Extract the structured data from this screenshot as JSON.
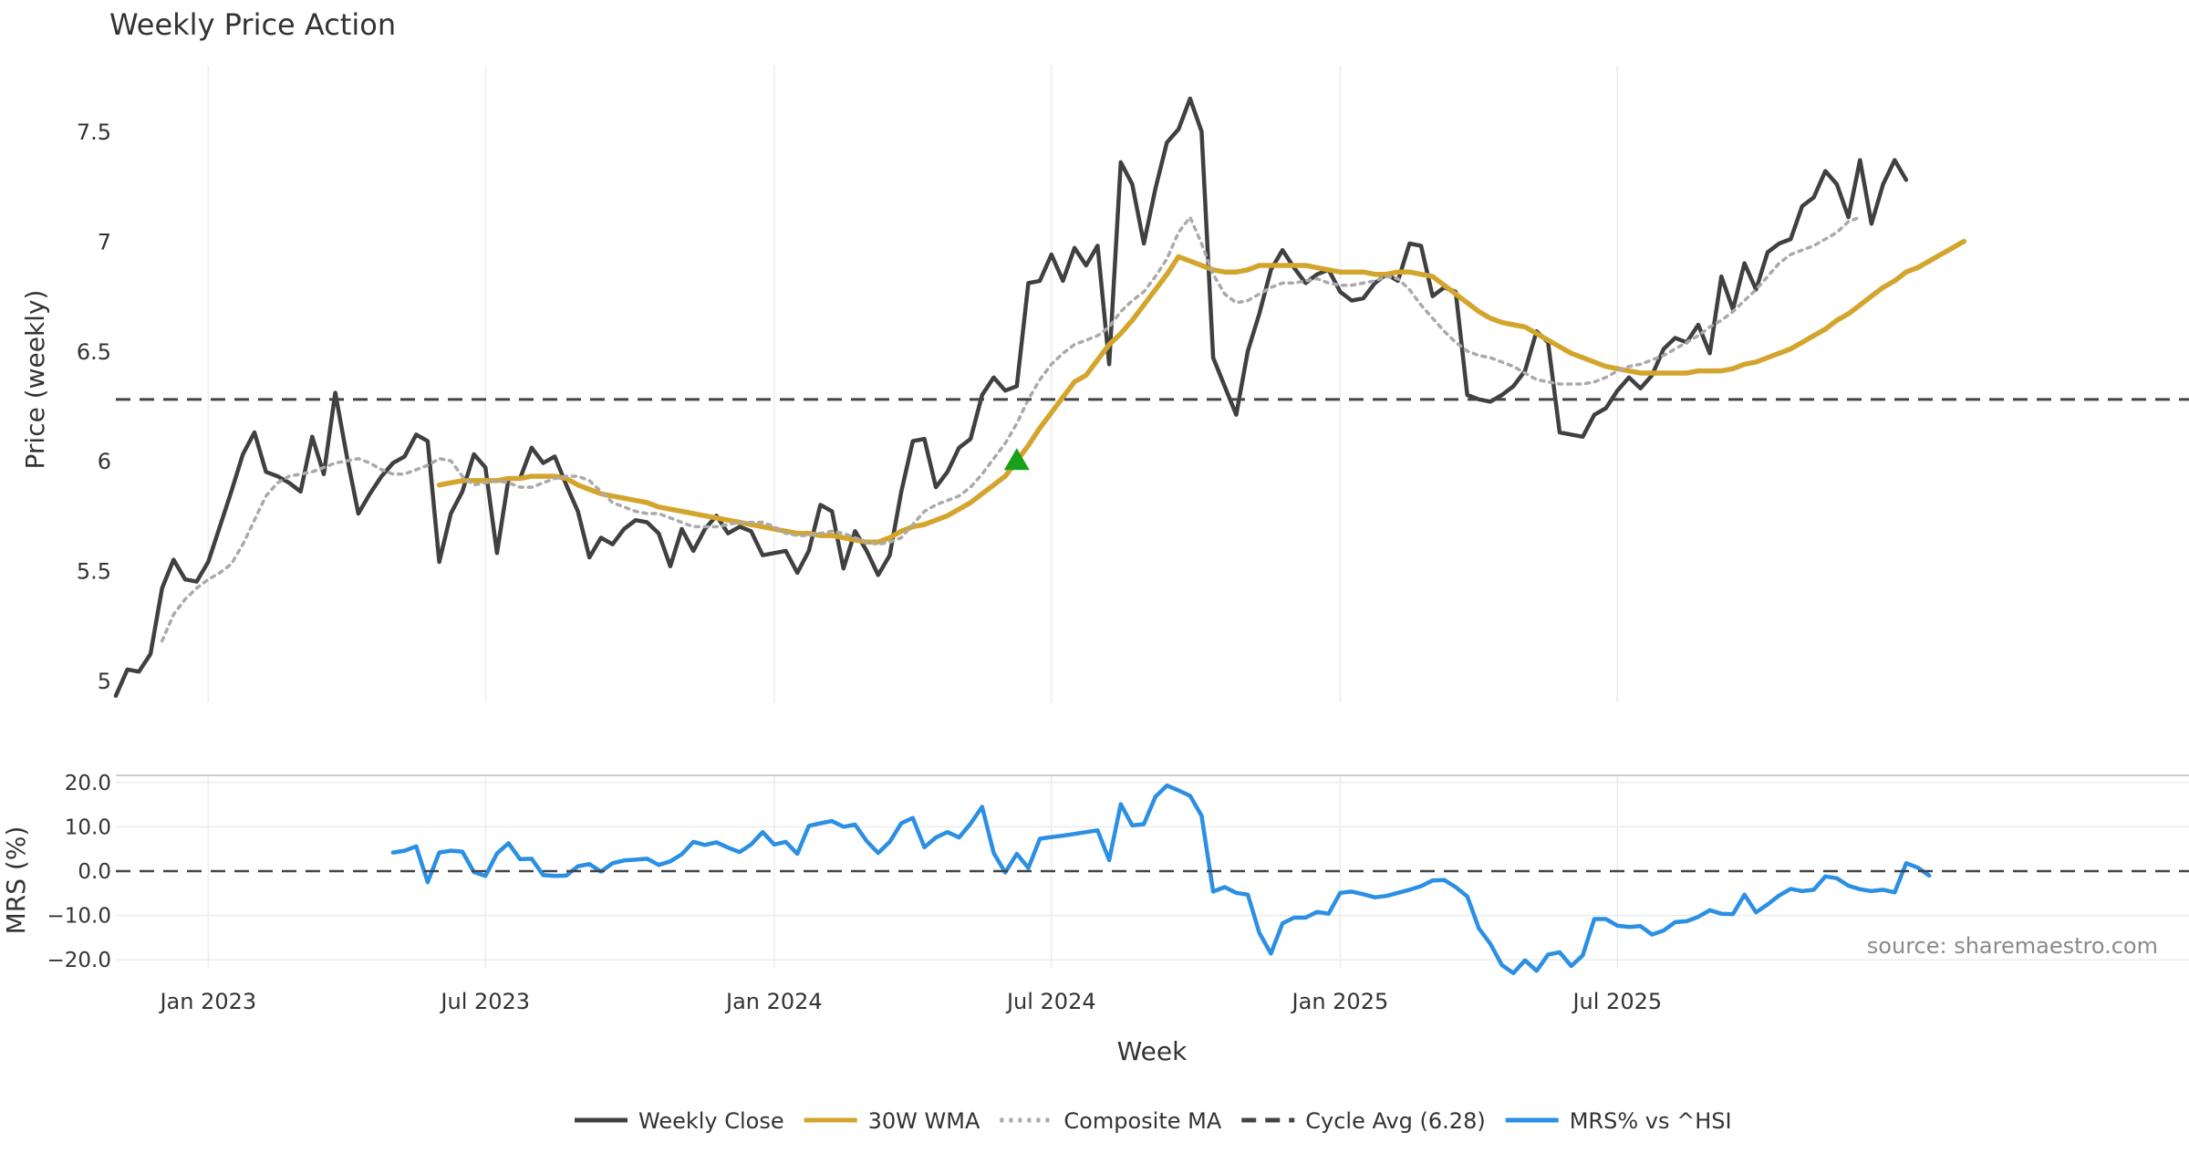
{
  "title": "Weekly Price Action",
  "source": "source: sharemaestro.com",
  "x_axis_label": "Week",
  "colors": {
    "close": "#404040",
    "wma": "#d4a52c",
    "composite": "#aaaaaa",
    "cycle": "#444444",
    "mrs": "#2b8fe3",
    "marker": "#1aa11a",
    "grid": "#ececec",
    "text": "#333333"
  },
  "chart_data": [
    {
      "type": "line",
      "title": "Weekly Price Action",
      "xlabel": "",
      "ylabel": "Price (weekly)",
      "ylim": [
        4.9,
        7.8
      ],
      "yticks": [
        5,
        5.5,
        6,
        6.5,
        7,
        7.5
      ],
      "ytick_labels": [
        "5",
        "5.5",
        "6",
        "6.5",
        "7",
        "7.5"
      ],
      "grid": "vertical",
      "start_date": "2022-11-13",
      "series": [
        {
          "name": "Weekly Close",
          "style": "solid",
          "values": [
            4.93,
            5.05,
            5.04,
            5.12,
            5.42,
            5.55,
            5.46,
            5.45,
            5.54,
            5.7,
            5.86,
            6.03,
            6.13,
            5.95,
            5.93,
            5.9,
            5.86,
            6.11,
            5.94,
            6.31,
            6.02,
            5.76,
            5.85,
            5.93,
            5.99,
            6.02,
            6.12,
            6.09,
            5.54,
            5.76,
            5.86,
            6.03,
            5.97,
            5.58,
            5.92,
            5.92,
            6.06,
            5.99,
            6.02,
            5.89,
            5.77,
            5.56,
            5.65,
            5.62,
            5.69,
            5.73,
            5.72,
            5.67,
            5.52,
            5.69,
            5.59,
            5.69,
            5.75,
            5.67,
            5.7,
            5.68,
            5.57,
            5.58,
            5.59,
            5.49,
            5.59,
            5.8,
            5.77,
            5.51,
            5.68,
            5.59,
            5.48,
            5.57,
            5.86,
            6.09,
            6.1,
            5.88,
            5.95,
            6.06,
            6.1,
            6.3,
            6.38,
            6.32,
            6.34,
            6.81,
            6.82,
            6.94,
            6.82,
            6.97,
            6.89,
            6.98,
            6.44,
            7.36,
            7.26,
            6.99,
            7.24,
            7.45,
            7.51,
            7.65,
            7.5,
            6.47,
            6.34,
            6.21,
            6.5,
            6.67,
            6.87,
            6.96,
            6.88,
            6.81,
            6.85,
            6.87,
            6.77,
            6.73,
            6.74,
            6.81,
            6.85,
            6.82,
            6.99,
            6.98,
            6.75,
            6.79,
            6.77,
            6.3,
            6.28,
            6.27,
            6.3,
            6.34,
            6.41,
            6.59,
            6.54,
            6.13,
            6.12,
            6.11,
            6.21,
            6.24,
            6.32,
            6.38,
            6.33,
            6.39,
            6.51,
            6.56,
            6.54,
            6.62,
            6.49,
            6.84,
            6.69,
            6.9,
            6.78,
            6.95,
            6.99,
            7.01,
            7.16,
            7.2,
            7.32,
            7.26,
            7.11,
            7.37,
            7.08,
            7.26,
            7.37,
            7.28
          ]
        },
        {
          "name": "30W WMA",
          "style": "solid",
          "start_index": 28,
          "values": [
            5.89,
            5.9,
            5.91,
            5.91,
            5.91,
            5.91,
            5.92,
            5.92,
            5.93,
            5.93,
            5.93,
            5.92,
            5.89,
            5.87,
            5.85,
            5.84,
            5.83,
            5.82,
            5.81,
            5.79,
            5.78,
            5.77,
            5.76,
            5.75,
            5.74,
            5.73,
            5.72,
            5.71,
            5.7,
            5.69,
            5.68,
            5.67,
            5.67,
            5.66,
            5.66,
            5.65,
            5.64,
            5.63,
            5.63,
            5.65,
            5.68,
            5.7,
            5.71,
            5.73,
            5.75,
            5.78,
            5.81,
            5.85,
            5.89,
            5.93,
            6.0,
            6.07,
            6.15,
            6.22,
            6.29,
            6.36,
            6.39,
            6.46,
            6.53,
            6.58,
            6.64,
            6.71,
            6.78,
            6.85,
            6.93,
            6.91,
            6.89,
            6.87,
            6.86,
            6.86,
            6.87,
            6.89,
            6.89,
            6.89,
            6.89,
            6.89,
            6.88,
            6.87,
            6.86,
            6.86,
            6.86,
            6.85,
            6.85,
            6.86,
            6.86,
            6.85,
            6.84,
            6.8,
            6.76,
            6.72,
            6.68,
            6.65,
            6.63,
            6.62,
            6.61,
            6.58,
            6.55,
            6.52,
            6.49,
            6.47,
            6.45,
            6.43,
            6.42,
            6.41,
            6.4,
            6.4,
            6.4,
            6.4,
            6.4,
            6.41,
            6.41,
            6.41,
            6.42,
            6.44,
            6.45,
            6.47,
            6.49,
            6.51,
            6.54,
            6.57,
            6.6,
            6.64,
            6.67,
            6.71,
            6.75,
            6.79,
            6.82,
            6.86,
            6.88,
            6.91,
            6.94,
            6.97,
            7.0
          ]
        },
        {
          "name": "Composite MA",
          "style": "dotted",
          "start_index": 4,
          "values": [
            5.18,
            5.3,
            5.37,
            5.42,
            5.46,
            5.49,
            5.53,
            5.62,
            5.73,
            5.84,
            5.9,
            5.93,
            5.94,
            5.95,
            5.97,
            5.99,
            6.0,
            6.01,
            5.99,
            5.96,
            5.94,
            5.94,
            5.96,
            5.98,
            6.01,
            6.0,
            5.93,
            5.89,
            5.9,
            5.91,
            5.9,
            5.88,
            5.88,
            5.9,
            5.92,
            5.93,
            5.93,
            5.91,
            5.86,
            5.81,
            5.79,
            5.77,
            5.76,
            5.76,
            5.74,
            5.72,
            5.7,
            5.7,
            5.7,
            5.71,
            5.72,
            5.72,
            5.72,
            5.7,
            5.67,
            5.66,
            5.66,
            5.67,
            5.68,
            5.67,
            5.65,
            5.63,
            5.62,
            5.63,
            5.65,
            5.71,
            5.77,
            5.8,
            5.82,
            5.84,
            5.88,
            5.94,
            6.01,
            6.08,
            6.17,
            6.28,
            6.37,
            6.44,
            6.49,
            6.53,
            6.55,
            6.57,
            6.61,
            6.68,
            6.73,
            6.77,
            6.84,
            6.92,
            7.04,
            7.11,
            6.99,
            6.85,
            6.76,
            6.72,
            6.73,
            6.76,
            6.79,
            6.81,
            6.81,
            6.82,
            6.83,
            6.81,
            6.8,
            6.8,
            6.81,
            6.82,
            6.84,
            6.83,
            6.78,
            6.71,
            6.65,
            6.59,
            6.54,
            6.5,
            6.48,
            6.47,
            6.45,
            6.43,
            6.4,
            6.37,
            6.36,
            6.35,
            6.35,
            6.35,
            6.36,
            6.38,
            6.41,
            6.43,
            6.44,
            6.46,
            6.48,
            6.51,
            6.54,
            6.57,
            6.61,
            6.64,
            6.68,
            6.73,
            6.78,
            6.84,
            6.9,
            6.94,
            6.96,
            6.98,
            7.01,
            7.04,
            7.09,
            7.11
          ]
        },
        {
          "name": "Cycle Avg (6.28)",
          "style": "dashed",
          "value": 6.28
        }
      ],
      "markers": [
        {
          "type": "triangle-up",
          "index": 78,
          "y": 6.0
        }
      ]
    },
    {
      "type": "line",
      "ylabel": "MRS (%)",
      "ylim": [
        -23,
        21
      ],
      "yticks": [
        -20,
        -10,
        0,
        10,
        20
      ],
      "ytick_labels": [
        "−20.0",
        "−10.0",
        "0.0",
        "10.0",
        "20.0"
      ],
      "xlabel": "Week",
      "xticks": [
        {
          "index": 8,
          "label": "Jan 2023"
        },
        {
          "index": 32,
          "label": "Jul 2023"
        },
        {
          "index": 57,
          "label": "Jan 2024"
        },
        {
          "index": 81,
          "label": "Jul 2024"
        },
        {
          "index": 106,
          "label": "Jan 2025"
        },
        {
          "index": 130,
          "label": "Jul 2025"
        }
      ],
      "series": [
        {
          "name": "MRS% vs ^HSI",
          "style": "solid",
          "start_index": 24,
          "values": [
            4.2,
            4.6,
            5.6,
            -2.5,
            4.2,
            4.6,
            4.4,
            -0.2,
            -1.1,
            4.0,
            6.3,
            2.7,
            2.8,
            -0.9,
            -1.1,
            -1.0,
            1.1,
            1.6,
            -0.1,
            1.8,
            2.4,
            2.6,
            2.8,
            1.4,
            2.2,
            3.8,
            6.6,
            5.9,
            6.5,
            5.3,
            4.3,
            6.0,
            8.8,
            6.0,
            6.6,
            3.9,
            10.2,
            10.8,
            11.3,
            10.0,
            10.5,
            6.8,
            4.1,
            6.6,
            10.8,
            12.0,
            5.4,
            7.6,
            8.8,
            7.6,
            10.7,
            14.5,
            4.1,
            -0.3,
            3.9,
            0.7,
            7.3,
            7.7,
            8.0,
            8.4,
            8.8,
            9.2,
            2.5,
            15.1,
            10.3,
            10.6,
            16.8,
            19.3,
            18.2,
            17.0,
            12.5,
            -4.6,
            -3.6,
            -4.9,
            -5.3,
            -13.9,
            -18.6,
            -11.8,
            -10.5,
            -10.5,
            -9.2,
            -9.6,
            -4.9,
            -4.6,
            -5.2,
            -5.9,
            -5.6,
            -4.9,
            -4.2,
            -3.4,
            -2.1,
            -2.0,
            -3.6,
            -5.7,
            -12.9,
            -16.4,
            -21.2,
            -23.0,
            -20.1,
            -22.5,
            -18.8,
            -18.3,
            -21.4,
            -19.0,
            -10.8,
            -10.8,
            -12.3,
            -12.6,
            -12.4,
            -14.3,
            -13.4,
            -11.5,
            -11.3,
            -10.3,
            -8.8,
            -9.6,
            -9.7,
            -5.3,
            -9.3,
            -7.5,
            -5.5,
            -4.0,
            -4.5,
            -4.2,
            -1.2,
            -1.6,
            -3.3,
            -4.1,
            -4.5,
            -4.2,
            -4.8,
            1.8,
            0.8,
            -1.0
          ]
        },
        {
          "name": "",
          "style": "dashed",
          "value": 0
        }
      ]
    }
  ],
  "legend": [
    {
      "label": "Weekly Close",
      "style": "solid",
      "color": "#404040"
    },
    {
      "label": "30W WMA",
      "style": "solid",
      "color": "#d4a52c"
    },
    {
      "label": "Composite MA",
      "style": "dotted",
      "color": "#aaaaaa"
    },
    {
      "label": "Cycle Avg (6.28)",
      "style": "dashed",
      "color": "#444444"
    },
    {
      "label": "MRS% vs ^HSI",
      "style": "solid",
      "color": "#2b8fe3"
    }
  ]
}
